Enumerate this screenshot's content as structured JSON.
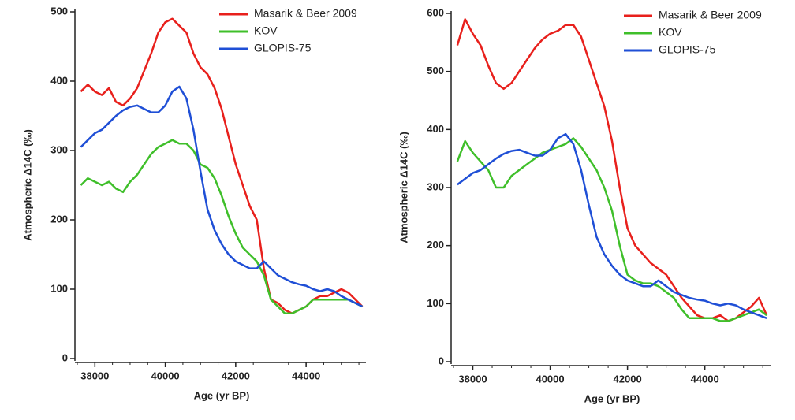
{
  "chart_data": [
    {
      "type": "line",
      "x_label": "Age (yr BP)",
      "y_label": "Atmospheric Δ14C (‰)",
      "xlim": [
        37500,
        45700
      ],
      "xticks": [
        38000,
        40000,
        42000,
        44000
      ],
      "ylim": [
        0,
        500
      ],
      "yticks": [
        0,
        100,
        200,
        300,
        400,
        500
      ],
      "legend": "upper right",
      "x": [
        37600,
        37800,
        38000,
        38200,
        38400,
        38600,
        38800,
        39000,
        39200,
        39400,
        39600,
        39800,
        40000,
        40200,
        40400,
        40600,
        40800,
        41000,
        41200,
        41400,
        41600,
        41800,
        42000,
        42200,
        42400,
        42600,
        42800,
        43000,
        43200,
        43400,
        43600,
        43800,
        44000,
        44200,
        44400,
        44600,
        44800,
        45000,
        45200,
        45400,
        45600
      ],
      "series": [
        {
          "name": "Masarik & Beer 2009",
          "color": "#e8201c",
          "values": [
            385,
            395,
            385,
            380,
            390,
            370,
            365,
            375,
            390,
            415,
            440,
            470,
            485,
            490,
            480,
            470,
            440,
            420,
            410,
            390,
            360,
            320,
            280,
            250,
            220,
            200,
            130,
            85,
            80,
            70,
            65,
            70,
            75,
            85,
            90,
            90,
            95,
            100,
            95,
            85,
            75
          ]
        },
        {
          "name": "KOV",
          "color": "#3fbf2a",
          "values": [
            250,
            260,
            255,
            250,
            255,
            245,
            240,
            255,
            265,
            280,
            295,
            305,
            310,
            315,
            310,
            310,
            300,
            280,
            275,
            260,
            235,
            205,
            180,
            160,
            150,
            140,
            120,
            85,
            75,
            65,
            65,
            70,
            75,
            85,
            85,
            85,
            85,
            85,
            85,
            80,
            75
          ]
        },
        {
          "name": "GLOPIS-75",
          "color": "#1f4fd6",
          "values": [
            305,
            315,
            325,
            330,
            340,
            350,
            358,
            363,
            365,
            360,
            355,
            355,
            365,
            385,
            392,
            375,
            330,
            270,
            215,
            185,
            165,
            150,
            140,
            135,
            130,
            130,
            140,
            130,
            120,
            115,
            110,
            107,
            105,
            100,
            97,
            100,
            97,
            90,
            85,
            80,
            75
          ]
        }
      ]
    },
    {
      "type": "line",
      "x_label": "Age (yr BP)",
      "y_label": "Atmospheric Δ14C (‰)",
      "xlim": [
        37500,
        45700
      ],
      "xticks": [
        38000,
        40000,
        42000,
        44000
      ],
      "ylim": [
        0,
        600
      ],
      "yticks": [
        0,
        100,
        200,
        300,
        400,
        500,
        600
      ],
      "legend": "upper right",
      "x": [
        37600,
        37800,
        38000,
        38200,
        38400,
        38600,
        38800,
        39000,
        39200,
        39400,
        39600,
        39800,
        40000,
        40200,
        40400,
        40600,
        40800,
        41000,
        41200,
        41400,
        41600,
        41800,
        42000,
        42200,
        42400,
        42600,
        42800,
        43000,
        43200,
        43400,
        43600,
        43800,
        44000,
        44200,
        44400,
        44600,
        44800,
        45000,
        45200,
        45400,
        45600
      ],
      "series": [
        {
          "name": "Masarik & Beer 2009",
          "color": "#e8201c",
          "values": [
            545,
            590,
            565,
            545,
            510,
            480,
            470,
            480,
            500,
            520,
            540,
            555,
            565,
            570,
            580,
            580,
            560,
            520,
            480,
            440,
            380,
            300,
            230,
            200,
            185,
            170,
            160,
            150,
            130,
            110,
            95,
            80,
            75,
            75,
            80,
            70,
            75,
            85,
            95,
            110,
            80
          ]
        },
        {
          "name": "KOV",
          "color": "#3fbf2a",
          "values": [
            345,
            380,
            360,
            345,
            330,
            300,
            300,
            320,
            330,
            340,
            350,
            360,
            365,
            370,
            375,
            385,
            370,
            350,
            330,
            300,
            260,
            200,
            150,
            140,
            135,
            135,
            130,
            120,
            110,
            90,
            75,
            75,
            75,
            75,
            70,
            70,
            75,
            80,
            85,
            90,
            80
          ]
        },
        {
          "name": "GLOPIS-75",
          "color": "#1f4fd6",
          "values": [
            305,
            315,
            325,
            330,
            340,
            350,
            358,
            363,
            365,
            360,
            355,
            355,
            365,
            385,
            392,
            375,
            330,
            270,
            215,
            185,
            165,
            150,
            140,
            135,
            130,
            130,
            140,
            130,
            120,
            115,
            110,
            107,
            105,
            100,
            97,
            100,
            97,
            90,
            85,
            80,
            75
          ]
        }
      ]
    }
  ]
}
